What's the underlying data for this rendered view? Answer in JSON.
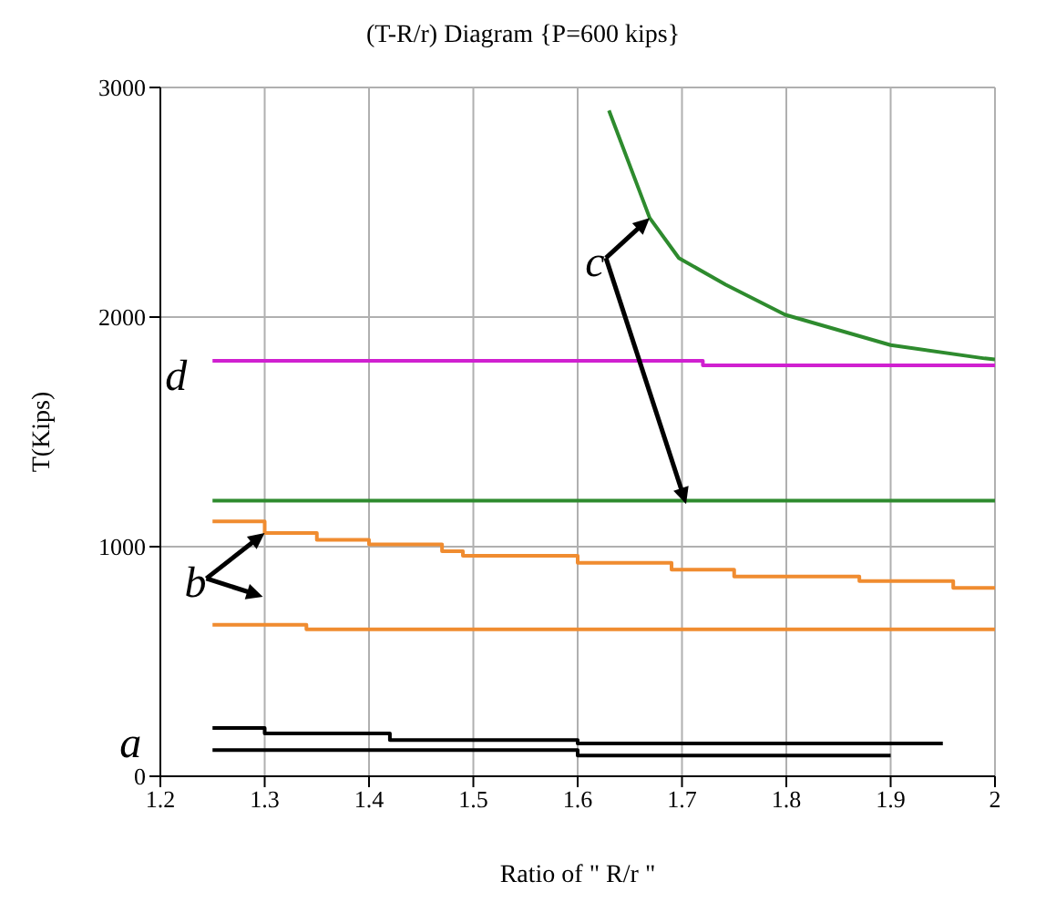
{
  "chart_data": {
    "type": "line",
    "title": "(T-R/r) Diagram {P=600 kips}",
    "xlabel": "Ratio of \" R/r \"",
    "ylabel": "T(Kips)",
    "xlim": [
      1.2,
      2
    ],
    "xticks": [
      1.2,
      1.3,
      1.4,
      1.5,
      1.6,
      1.7,
      1.8,
      1.9,
      2
    ],
    "ylim": [
      0,
      3000
    ],
    "yticks": [
      0,
      1000,
      2000,
      3000
    ],
    "grid": true,
    "marker": "none",
    "series": [
      {
        "type": "step",
        "color": "#000000",
        "x": [
          1.25,
          1.3,
          1.42,
          1.6,
          1.95
        ],
        "values": [
          210,
          187,
          158,
          143,
          143
        ]
      },
      {
        "type": "step",
        "color": "#000000",
        "x": [
          1.25,
          1.6,
          1.9
        ],
        "values": [
          114,
          90,
          90
        ]
      },
      {
        "type": "step",
        "color": "#f08c30",
        "x": [
          1.25,
          1.3,
          1.35,
          1.4,
          1.47,
          1.49,
          1.6,
          1.69,
          1.75,
          1.87,
          1.96,
          2
        ],
        "values": [
          1110,
          1060,
          1030,
          1010,
          980,
          960,
          930,
          900,
          870,
          850,
          820,
          820
        ]
      },
      {
        "type": "step",
        "color": "#f08c30",
        "x": [
          1.25,
          1.34,
          2
        ],
        "values": [
          660,
          640,
          640
        ]
      },
      {
        "type": "line",
        "color": "#2e8b2e",
        "x": [
          1.25,
          2
        ],
        "values": [
          1200,
          1200
        ]
      },
      {
        "type": "step",
        "color": "#d020d0",
        "x": [
          1.25,
          1.72,
          2
        ],
        "values": [
          1810,
          1790,
          1790
        ]
      },
      {
        "type": "line",
        "color": "#2e8b2e",
        "x": [
          1.63,
          1.669,
          1.697,
          1.742,
          1.799,
          1.9,
          1.99,
          2
        ],
        "values": [
          2900,
          2432,
          2257,
          2141,
          2010,
          1878,
          1820,
          1815
        ]
      }
    ],
    "annotations": [
      {
        "text": "a",
        "x": 1.25,
        "y": 210
      },
      {
        "text": "b",
        "x": 1.3,
        "y": 1060
      },
      {
        "text": "c",
        "x": 1.669,
        "y": 2432
      },
      {
        "text": "d",
        "x": 1.25,
        "y": 1810
      }
    ]
  }
}
